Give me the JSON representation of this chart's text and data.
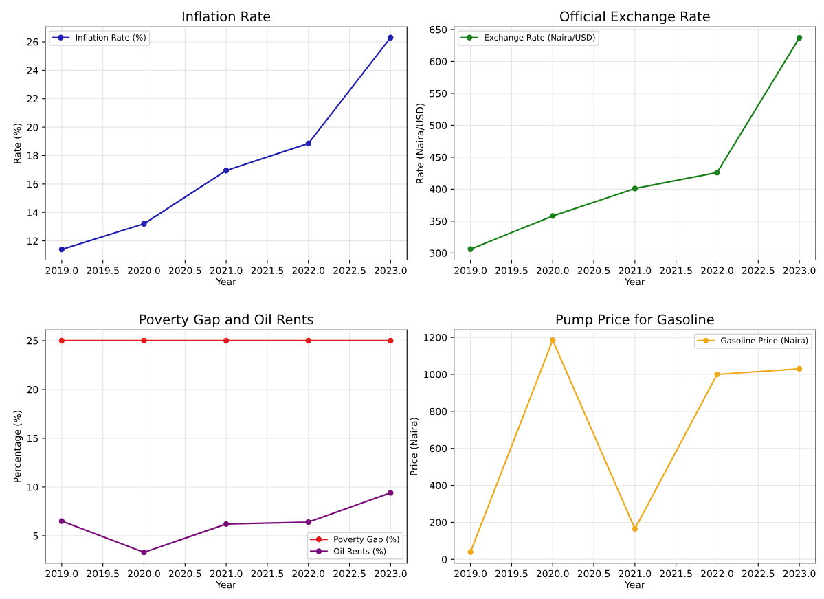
{
  "chart_data": [
    {
      "type": "line",
      "title": "Inflation Rate",
      "xlabel": "Year",
      "ylabel": "Rate (%)",
      "x": [
        2019,
        2020,
        2021,
        2022,
        2023
      ],
      "series": [
        {
          "name": "Inflation Rate (%)",
          "color": "#1f1fb4",
          "values": [
            11.4,
            13.2,
            16.95,
            18.85,
            26.3
          ]
        }
      ],
      "xlim": [
        2018.8,
        2023.2
      ],
      "xticks": [
        {
          "value": 2019,
          "label": "2019.0"
        },
        2019.5,
        {
          "value": 2020,
          "label": "2020.0"
        },
        2020.5,
        {
          "value": 2021,
          "label": "2021.0"
        },
        2021.5,
        {
          "value": 2022,
          "label": "2022.0"
        },
        2022.5,
        {
          "value": 2023,
          "label": "2023.0"
        }
      ],
      "ylim": [
        10.65,
        27.05
      ],
      "yticks": [
        12,
        14,
        16,
        18,
        20,
        22,
        24,
        26
      ],
      "grid": true,
      "legend": "top left",
      "marker": "circle",
      "line_style": "solid"
    },
    {
      "type": "line",
      "title": "Official Exchange Rate",
      "xlabel": "Year",
      "ylabel": "Rate (Naira/USD)",
      "x": [
        2019,
        2020,
        2021,
        2022,
        2023
      ],
      "series": [
        {
          "name": "Exchange Rate (Naira/USD)",
          "color": "#1a801a",
          "values": [
            306,
            358,
            401,
            426,
            637
          ]
        }
      ],
      "xlim": [
        2018.8,
        2023.2
      ],
      "xticks": [
        {
          "value": 2019,
          "label": "2019.0"
        },
        2019.5,
        {
          "value": 2020,
          "label": "2020.0"
        },
        2020.5,
        {
          "value": 2021,
          "label": "2021.0"
        },
        2021.5,
        {
          "value": 2022,
          "label": "2022.0"
        },
        2022.5,
        {
          "value": 2023,
          "label": "2023.0"
        }
      ],
      "ylim": [
        289,
        654
      ],
      "yticks": [
        300,
        350,
        400,
        450,
        500,
        550,
        600,
        650
      ],
      "grid": true,
      "legend": "top left",
      "marker": "circle",
      "line_style": "solid"
    },
    {
      "type": "line",
      "title": "Poverty Gap and Oil Rents",
      "xlabel": "Year",
      "ylabel": "Percentage (%)",
      "x": [
        2019,
        2020,
        2021,
        2022,
        2023
      ],
      "series": [
        {
          "name": "Poverty Gap (%)",
          "color": "#e41a1a",
          "values": [
            25,
            25,
            25,
            25,
            25
          ]
        },
        {
          "name": "Oil Rents (%)",
          "color": "#7a0a7a",
          "values": [
            6.5,
            3.3,
            6.2,
            6.4,
            9.4
          ]
        }
      ],
      "xlim": [
        2018.8,
        2023.2
      ],
      "xticks": [
        {
          "value": 2019,
          "label": "2019.0"
        },
        2019.5,
        {
          "value": 2020,
          "label": "2020.0"
        },
        2020.5,
        {
          "value": 2021,
          "label": "2021.0"
        },
        2021.5,
        {
          "value": 2022,
          "label": "2022.0"
        },
        2022.5,
        {
          "value": 2023,
          "label": "2023.0"
        }
      ],
      "ylim": [
        2.2,
        26.1
      ],
      "yticks": [
        5,
        10,
        15,
        20,
        25
      ],
      "grid": true,
      "legend": "bottom right",
      "marker": "circle",
      "line_style": "solid"
    },
    {
      "type": "line",
      "title": "Pump Price for Gasoline",
      "xlabel": "Year",
      "ylabel": "Price (Naira)",
      "x": [
        2019,
        2020,
        2021,
        2022,
        2023
      ],
      "series": [
        {
          "name": "Gasoline Price (Naira)",
          "color": "#f0a818",
          "values": [
            40,
            1185,
            165,
            1000,
            1030
          ]
        }
      ],
      "xlim": [
        2018.8,
        2023.2
      ],
      "xticks": [
        {
          "value": 2019,
          "label": "2019.0"
        },
        2019.5,
        {
          "value": 2020,
          "label": "2020.0"
        },
        2020.5,
        {
          "value": 2021,
          "label": "2021.0"
        },
        2021.5,
        {
          "value": 2022,
          "label": "2022.0"
        },
        2022.5,
        {
          "value": 2023,
          "label": "2023.0"
        }
      ],
      "ylim": [
        -20,
        1240
      ],
      "yticks": [
        0,
        200,
        400,
        600,
        800,
        1000,
        1200
      ],
      "grid": true,
      "legend": "top right",
      "marker": "circle",
      "line_style": "solid"
    }
  ]
}
